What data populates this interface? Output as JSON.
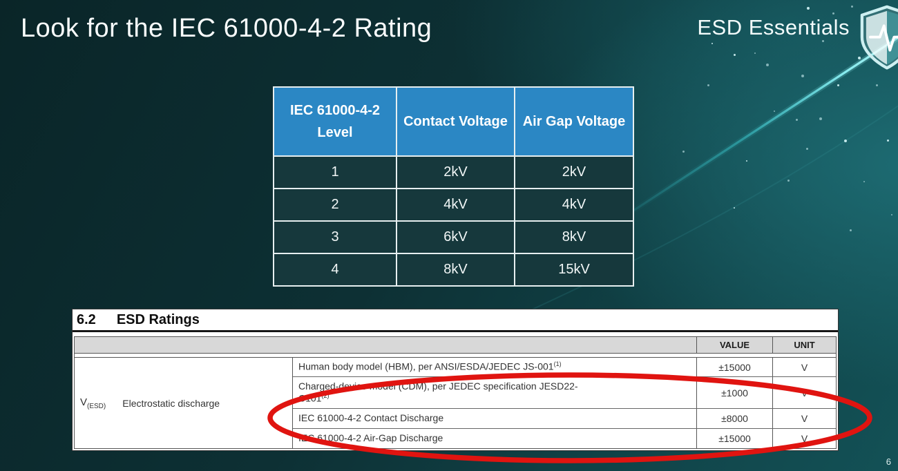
{
  "slide": {
    "title": "Look for the IEC 61000-4-2 Rating",
    "brand": "ESD Essentials",
    "page_number": "6"
  },
  "colors": {
    "background_light": "#1d6b72",
    "table_header_blue": "#2b87c4",
    "table_cell_dark": "#16383c",
    "accent_cyan": "#7deef2",
    "highlight_red": "#e01410",
    "datasheet_bg": "#ffffff",
    "datasheet_header_gray": "#d8d8d8"
  },
  "icons": {
    "shield_logo": "shield-with-pulse-line"
  },
  "level_table": {
    "headers": [
      "IEC 61000-4-2 Level",
      "Contact Voltage",
      "Air Gap Voltage"
    ],
    "rows": [
      [
        "1",
        "2kV",
        "2kV"
      ],
      [
        "2",
        "4kV",
        "4kV"
      ],
      [
        "3",
        "6kV",
        "8kV"
      ],
      [
        "4",
        "8kV",
        "15kV"
      ]
    ]
  },
  "datasheet": {
    "section_number": "6.2",
    "section_title": "ESD Ratings",
    "value_header": "VALUE",
    "unit_header": "UNIT",
    "symbol_base": "V",
    "symbol_sub": "(ESD)",
    "parameter": "Electrostatic discharge",
    "rows": [
      {
        "desc_lines": [
          "Human body model (HBM), per ANSI/ESDA/JEDEC JS-001"
        ],
        "superscript": "(1)",
        "value": "±15000",
        "unit": "V"
      },
      {
        "desc_lines": [
          "Charged-device model (CDM), per JEDEC specification JESD22-",
          "C101"
        ],
        "superscript": "(2)",
        "value": "±1000",
        "unit": "V"
      },
      {
        "desc_lines": [
          "IEC 61000-4-2 Contact Discharge"
        ],
        "superscript": "",
        "value": "±8000",
        "unit": "V"
      },
      {
        "desc_lines": [
          "IEC 61000-4-2 Air-Gap Discharge"
        ],
        "superscript": "",
        "value": "±15000",
        "unit": "V"
      }
    ]
  }
}
